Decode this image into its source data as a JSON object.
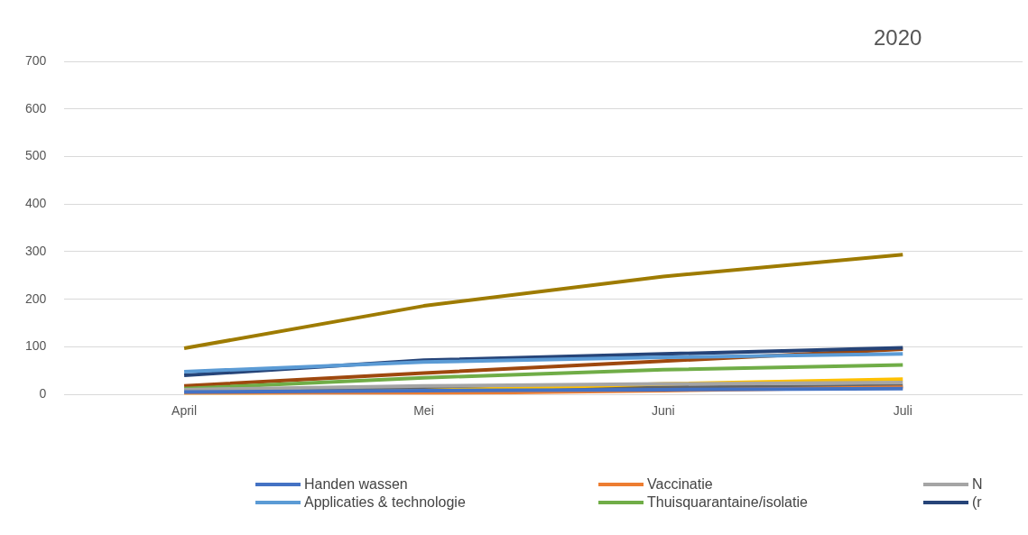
{
  "chart_data": {
    "type": "line",
    "title": "2020",
    "categories": [
      "April",
      "Mei",
      "Juni",
      "Juli"
    ],
    "ylim": [
      0,
      700
    ],
    "yticks": [
      0,
      100,
      200,
      300,
      400,
      500,
      600,
      700
    ],
    "grid": "y",
    "legend": "bottom",
    "marker": "none",
    "line_style": "solid",
    "series": [
      {
        "name": "Handen wassen",
        "color": "#4472c4",
        "values": [
          5,
          8,
          10,
          12
        ]
      },
      {
        "name": "Vaccinatie",
        "color": "#ed7d31",
        "values": [
          0,
          2,
          8,
          15
        ]
      },
      {
        "name": "N",
        "color": "#a5a5a5",
        "values": [
          10,
          18,
          22,
          25
        ]
      },
      {
        "name": "Applicaties & technologie",
        "color": "#5b9bd5",
        "values": [
          48,
          68,
          78,
          85
        ]
      },
      {
        "name": "Thuisquarantaine/isolatie",
        "color": "#70ad47",
        "values": [
          12,
          35,
          52,
          62
        ]
      },
      {
        "name": "(r",
        "color": "#264478",
        "values": [
          40,
          72,
          85,
          98
        ]
      },
      {
        "color": "#9e7b00",
        "values": [
          97,
          186,
          248,
          294
        ]
      },
      {
        "color": "#9e480e",
        "values": [
          18,
          45,
          70,
          95
        ]
      },
      {
        "color": "#ffc000",
        "values": [
          0,
          8,
          22,
          32
        ]
      },
      {
        "color": "#636363",
        "values": [
          8,
          12,
          15,
          18
        ]
      }
    ]
  }
}
